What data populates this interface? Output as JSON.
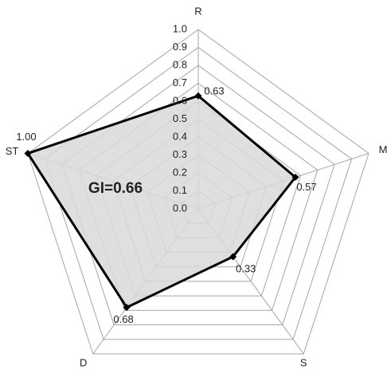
{
  "chart_data": {
    "type": "radar",
    "categories": [
      "R",
      "M",
      "S",
      "D",
      "ST"
    ],
    "values": [
      0.63,
      0.57,
      0.33,
      0.68,
      1.0
    ],
    "value_labels": [
      "0.63",
      "0.57",
      "0.33",
      "0.68",
      "1.00"
    ],
    "rlim": [
      0,
      1
    ],
    "rticks": [
      {
        "value": 0,
        "label": "0.0"
      },
      {
        "value": 0.1,
        "label": "0.1"
      },
      {
        "value": 0.2,
        "label": "0.2"
      },
      {
        "value": 0.3,
        "label": "0.3"
      },
      {
        "value": 0.4,
        "label": "0.4"
      },
      {
        "value": 0.5,
        "label": "0.5"
      },
      {
        "value": 0.6,
        "label": "0.6"
      },
      {
        "value": 0.7,
        "label": "0.7"
      },
      {
        "value": 0.8,
        "label": "0.8"
      },
      {
        "value": 0.9,
        "label": "0.9"
      },
      {
        "value": 1.0,
        "label": "1.0"
      }
    ],
    "annotation": "GI=0.66",
    "color": "#000000",
    "fill": "#d9d9d9",
    "grid": true
  }
}
